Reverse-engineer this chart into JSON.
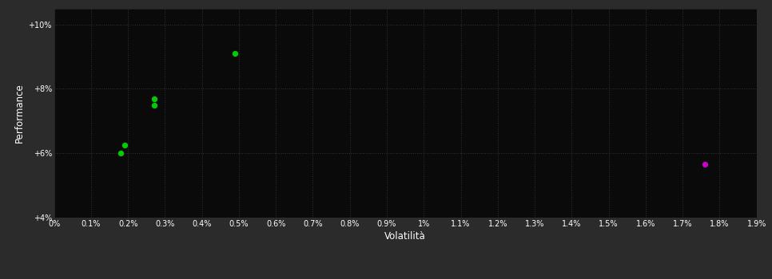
{
  "background_color": "#2b2b2b",
  "plot_bg_color": "#0a0a0a",
  "grid_color": "#333333",
  "text_color": "#ffffff",
  "xlabel": "Volatilità",
  "ylabel": "Performance",
  "xlim": [
    0.0,
    0.019
  ],
  "ylim": [
    0.04,
    0.105
  ],
  "x_tick_step": 0.001,
  "y_ticks": [
    0.04,
    0.06,
    0.08,
    0.1
  ],
  "y_tick_labels": [
    "+4%",
    "+6%",
    "+8%",
    "+10%"
  ],
  "green_points": [
    [
      0.0018,
      0.06
    ],
    [
      0.0019,
      0.0625
    ],
    [
      0.0027,
      0.075
    ],
    [
      0.00272,
      0.077
    ],
    [
      0.0049,
      0.091
    ]
  ],
  "magenta_points": [
    [
      0.0176,
      0.0565
    ]
  ],
  "green_color": "#00cc00",
  "magenta_color": "#cc00cc",
  "marker_size": 28
}
